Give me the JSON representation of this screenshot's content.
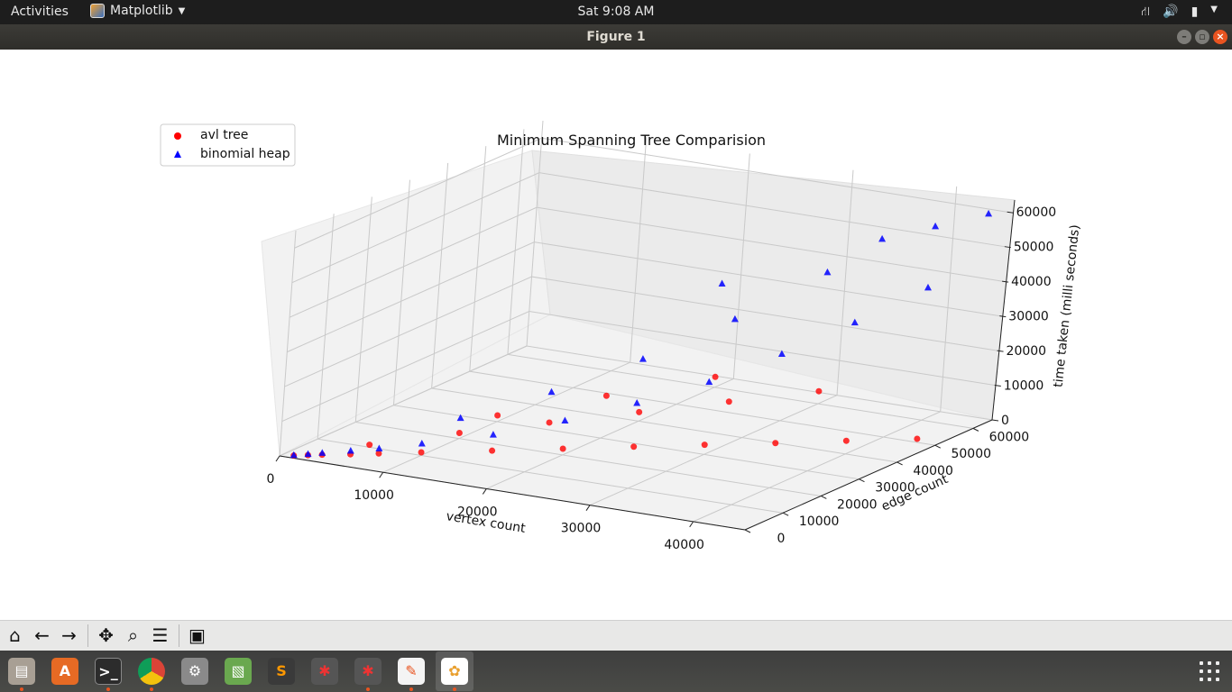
{
  "topbar": {
    "activities": "Activities",
    "app_name": "Matplotlib",
    "clock": "Sat  9:08 AM",
    "tray": [
      "network-icon",
      "volume-icon",
      "battery-icon"
    ]
  },
  "window": {
    "title": "Figure 1"
  },
  "toolbar": {
    "buttons": [
      "home-icon",
      "back-icon",
      "forward-icon",
      "pan-icon",
      "zoom-icon",
      "configure-icon",
      "save-icon"
    ]
  },
  "dock": {
    "apps": [
      "files",
      "software-center",
      "terminal",
      "chrome",
      "settings",
      "image-viewer",
      "sublime-text",
      "network-app-1",
      "network-app-2",
      "text-editor",
      "matplotlib"
    ]
  },
  "chart_data": {
    "type": "scatter",
    "projection": "3d",
    "title": "Minimum Spanning Tree Comparision",
    "xlabel": "vertex count",
    "ylabel": "edge count",
    "zlabel": "time taken (milli seconds)",
    "xlim": [
      0,
      45000
    ],
    "ylim": [
      0,
      65000
    ],
    "zlim": [
      0,
      65000
    ],
    "xticks": [
      "0",
      "10000",
      "20000",
      "30000",
      "40000"
    ],
    "yticks": [
      "0",
      "10000",
      "20000",
      "30000",
      "40000",
      "50000",
      "60000"
    ],
    "zticks": [
      "0",
      "10000",
      "20000",
      "30000",
      "40000",
      "50000",
      "60000"
    ],
    "grid": true,
    "legend_position": "top-left",
    "series": [
      {
        "name": "avl tree",
        "marker": "circle",
        "color": "#ff0000",
        "points": [
          [
            1000,
            1000,
            100
          ],
          [
            2000,
            2000,
            200
          ],
          [
            3000,
            3000,
            300
          ],
          [
            5000,
            5000,
            400
          ],
          [
            7000,
            7000,
            600
          ],
          [
            10000,
            10000,
            900
          ],
          [
            15000,
            15000,
            1300
          ],
          [
            20000,
            20000,
            1800
          ],
          [
            25000,
            25000,
            2300
          ],
          [
            30000,
            30000,
            2800
          ],
          [
            35000,
            35000,
            3200
          ],
          [
            40000,
            40000,
            3800
          ],
          [
            45000,
            45000,
            4300
          ],
          [
            10000,
            20000,
            1600
          ],
          [
            15000,
            30000,
            2100
          ],
          [
            20000,
            40000,
            2600
          ],
          [
            25000,
            50000,
            3100
          ],
          [
            30000,
            60000,
            3600
          ],
          [
            5000,
            10000,
            700
          ],
          [
            10000,
            30000,
            1800
          ],
          [
            15000,
            45000,
            2500
          ],
          [
            20000,
            60000,
            3000
          ]
        ]
      },
      {
        "name": "binomial heap",
        "marker": "triangle",
        "color": "#0000ff",
        "points": [
          [
            1000,
            1000,
            300
          ],
          [
            2000,
            2000,
            600
          ],
          [
            3000,
            3000,
            900
          ],
          [
            5000,
            5000,
            1500
          ],
          [
            7000,
            7000,
            2100
          ],
          [
            10000,
            10000,
            3500
          ],
          [
            15000,
            15000,
            6000
          ],
          [
            20000,
            20000,
            10000
          ],
          [
            25000,
            25000,
            15000
          ],
          [
            30000,
            30000,
            21000
          ],
          [
            35000,
            35000,
            29000
          ],
          [
            40000,
            40000,
            38000
          ],
          [
            45000,
            45000,
            48000
          ],
          [
            10000,
            20000,
            6000
          ],
          [
            15000,
            30000,
            11000
          ],
          [
            20000,
            40000,
            18000
          ],
          [
            25000,
            50000,
            27000
          ],
          [
            30000,
            60000,
            38000
          ],
          [
            20000,
            60000,
            30000
          ],
          [
            35000,
            60000,
            50000
          ],
          [
            40000,
            60000,
            56000
          ],
          [
            45000,
            60000,
            62000
          ]
        ]
      }
    ]
  }
}
